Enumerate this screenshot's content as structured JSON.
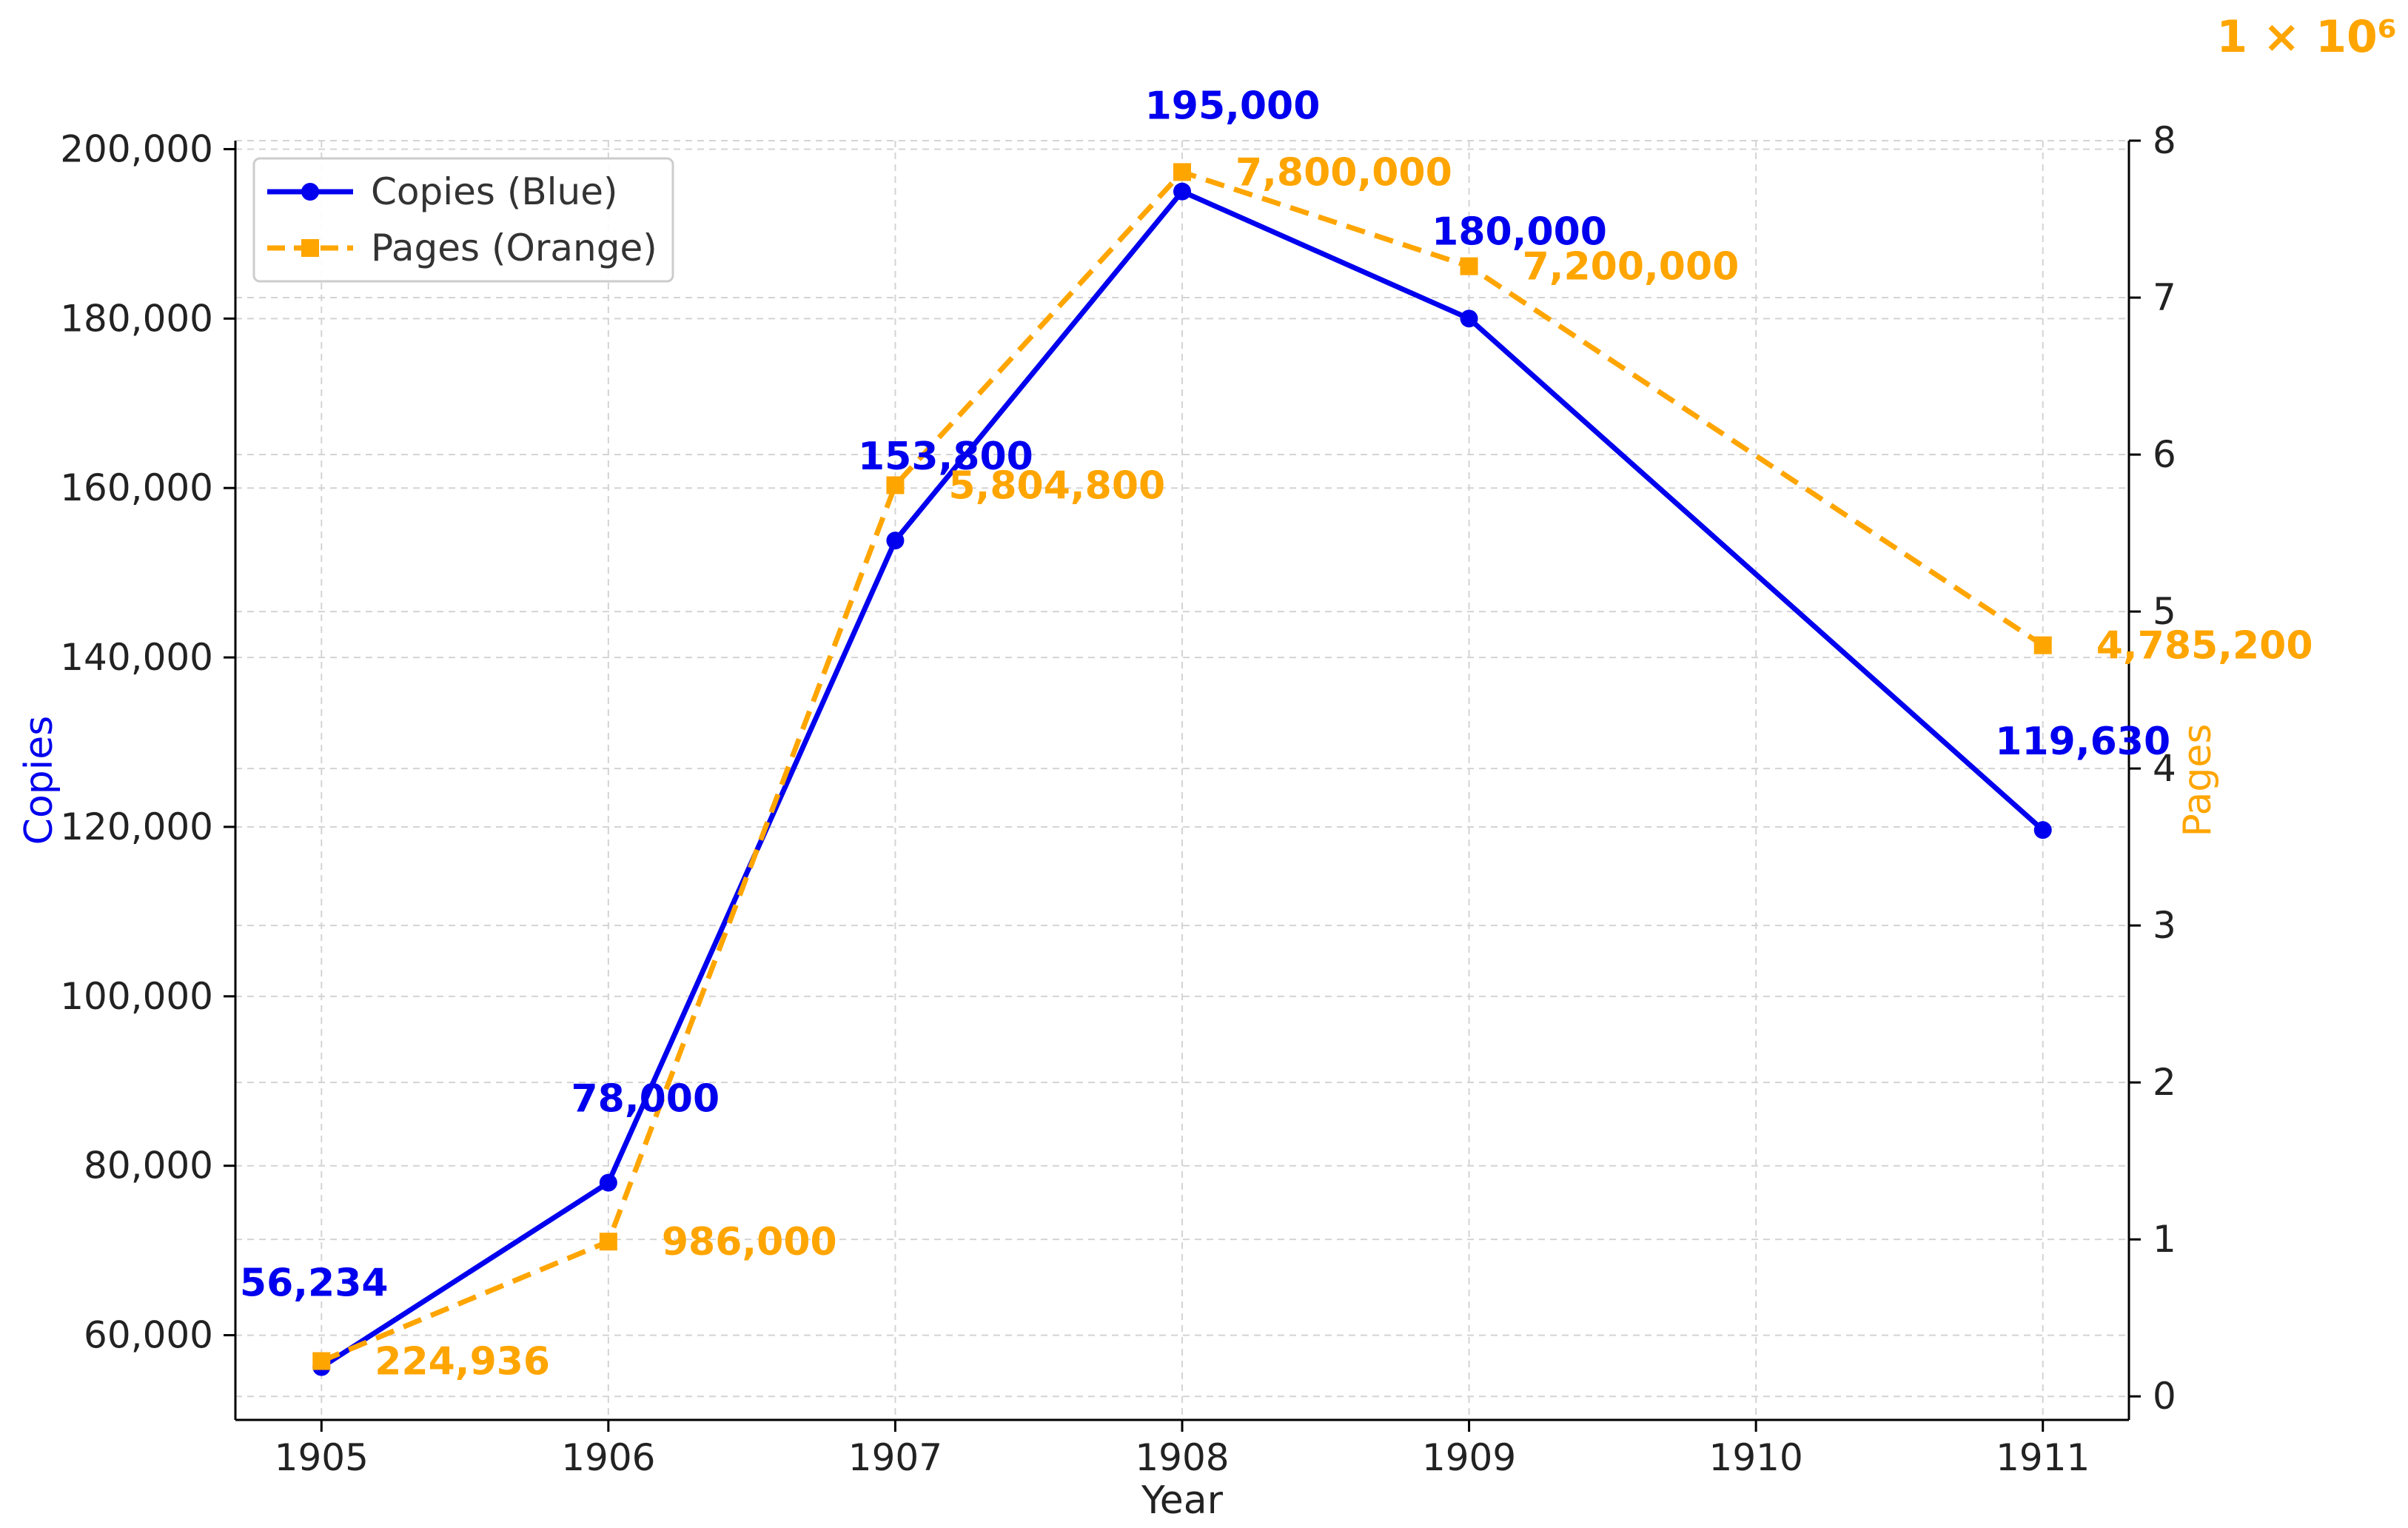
{
  "chart_data": {
    "type": "line",
    "x": [
      1905,
      1906,
      1907,
      1908,
      1909,
      1910,
      1911
    ],
    "x_tick_labels": [
      "1905",
      "1906",
      "1907",
      "1908",
      "1909",
      "1910",
      "1911"
    ],
    "xlabel": "Year",
    "ylabel_left": "Copies",
    "ylabel_right": "Pages",
    "right_axis_multiplier": "1 × 10⁶",
    "ylim_left": [
      50000,
      201000
    ],
    "ylim_right": [
      -0.15,
      8.0
    ],
    "y_ticks_left": [
      60000,
      80000,
      100000,
      120000,
      140000,
      160000,
      180000,
      200000
    ],
    "y_tick_labels_left": [
      "60,000",
      "80,000",
      "100,000",
      "120,000",
      "140,000",
      "160,000",
      "180,000",
      "200,000"
    ],
    "y_ticks_right": [
      0,
      1,
      2,
      3,
      4,
      5,
      6,
      7,
      8
    ],
    "y_tick_labels_right": [
      "0",
      "1",
      "2",
      "3",
      "4",
      "5",
      "6",
      "7",
      "8"
    ],
    "grid": true,
    "legend_position": "top-left",
    "series": [
      {
        "name": "Copies (Blue)",
        "axis": "left",
        "color": "#0000ee",
        "style": "solid",
        "marker": "circle",
        "x": [
          1905,
          1906,
          1907,
          1908,
          1909,
          1911
        ],
        "values": [
          56234,
          78000,
          153800,
          195000,
          180000,
          119630
        ],
        "labels": [
          "56,234",
          "78,000",
          "153,800",
          "195,000",
          "180,000",
          "119,630"
        ]
      },
      {
        "name": "Pages (Orange)",
        "axis": "right",
        "color": "#ffa500",
        "style": "dashed",
        "marker": "square",
        "x": [
          1905,
          1906,
          1907,
          1908,
          1909,
          1911
        ],
        "values": [
          224936,
          986000,
          5804800,
          7800000,
          7200000,
          4785200
        ],
        "labels": [
          "224,936",
          "986,000",
          "5,804,800",
          "7,800,000",
          "7,200,000",
          "4,785,200"
        ]
      }
    ]
  }
}
